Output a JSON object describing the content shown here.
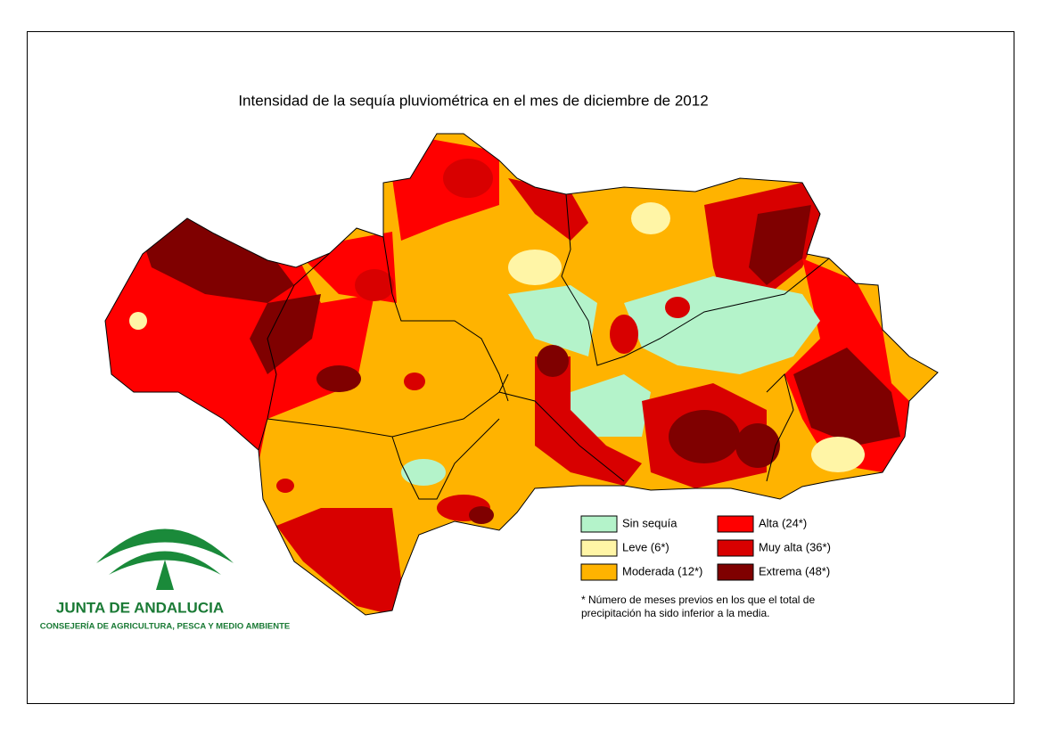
{
  "header": {
    "title": "Intensidad de la sequía pluviométrica en el mes de diciembre de 2012"
  },
  "legend": [
    {
      "label": "Sin sequía",
      "color": "#b4f3ca"
    },
    {
      "label": "Leve (6*)",
      "color": "#fff5a6"
    },
    {
      "label": "Moderada (12*)",
      "color": "#ffb300"
    },
    {
      "label": "Alta (24*)",
      "color": "#ff0000"
    },
    {
      "label": "Muy alta (36*)",
      "color": "#d80000"
    },
    {
      "label": "Extrema (48*)",
      "color": "#7f0000"
    }
  ],
  "note": [
    "* Número de meses previos en los que el total de",
    "precipitación ha sido inferior a la media."
  ],
  "logo": {
    "name": "JUNTA DE ANDALUCIA",
    "department": "CONSEJERÍA DE AGRICULTURA, PESCA Y MEDIO AMBIENTE"
  }
}
